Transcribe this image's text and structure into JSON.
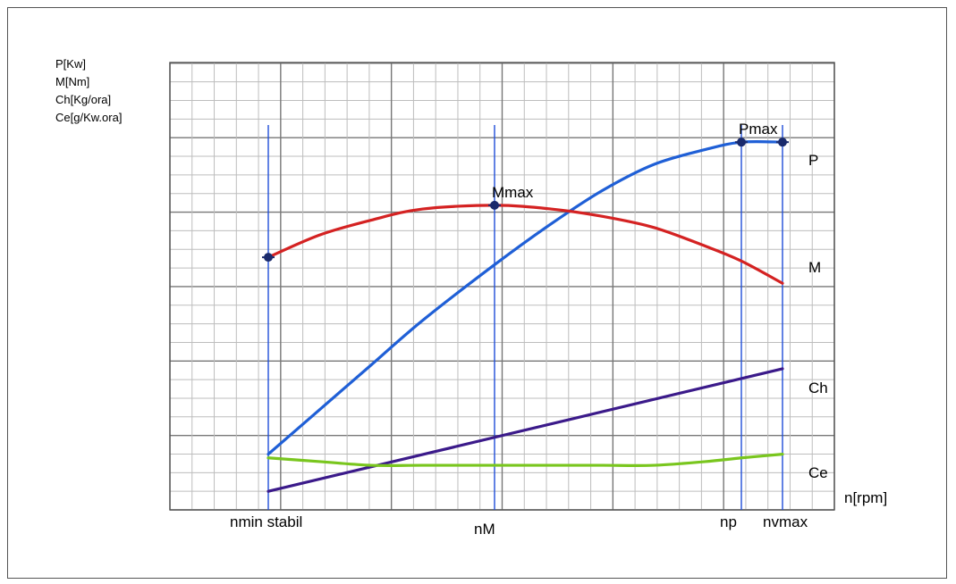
{
  "chart_data": {
    "type": "line",
    "y_axis_labels": [
      "P[Kw]",
      "M[Nm]",
      "Ch[Kg/ora]",
      "Ce[g/Kw.ora]"
    ],
    "xlabel": "n[rpm]",
    "x_ticks": [
      {
        "label": "nmin stabil",
        "x": 0
      },
      {
        "label": "nM",
        "x": 0.44
      },
      {
        "label": "np",
        "x": 0.92
      },
      {
        "label": "nvmax",
        "x": 1.0
      }
    ],
    "xlim": [
      -0.2,
      1.1
    ],
    "ylim": [
      0,
      1
    ],
    "grid": true,
    "series": [
      {
        "name": "P",
        "color": "#1f5fd6",
        "x": [
          0,
          0.1,
          0.2,
          0.3,
          0.44,
          0.55,
          0.65,
          0.75,
          0.85,
          0.92,
          1.0
        ],
        "y": [
          0.15,
          0.27,
          0.39,
          0.51,
          0.66,
          0.77,
          0.86,
          0.93,
          0.97,
          0.99,
          0.99
        ]
      },
      {
        "name": "M",
        "color": "#d42222",
        "x": [
          0,
          0.1,
          0.2,
          0.3,
          0.44,
          0.55,
          0.65,
          0.75,
          0.85,
          0.92,
          1.0
        ],
        "y": [
          0.68,
          0.74,
          0.78,
          0.81,
          0.82,
          0.81,
          0.79,
          0.76,
          0.71,
          0.67,
          0.61
        ]
      },
      {
        "name": "Ch",
        "color": "#3b1a8a",
        "x": [
          0,
          1.0
        ],
        "y": [
          0.05,
          0.38
        ]
      },
      {
        "name": "Ce",
        "color": "#79c61e",
        "x": [
          0,
          0.1,
          0.2,
          0.3,
          0.44,
          0.55,
          0.65,
          0.75,
          0.85,
          0.92,
          1.0
        ],
        "y": [
          0.14,
          0.13,
          0.12,
          0.12,
          0.12,
          0.12,
          0.12,
          0.12,
          0.13,
          0.14,
          0.15
        ]
      }
    ],
    "markers": [
      {
        "series": "M",
        "x": 0,
        "label": ""
      },
      {
        "series": "M",
        "x": 0.44,
        "label": "Mmax"
      },
      {
        "series": "P",
        "x": 0.92,
        "label": "Pmax"
      },
      {
        "series": "P",
        "x": 1.0,
        "label": ""
      }
    ],
    "vertical_lines": [
      0,
      0.44,
      0.92,
      1.0
    ],
    "vertical_line_color": "#1f4ed8"
  }
}
